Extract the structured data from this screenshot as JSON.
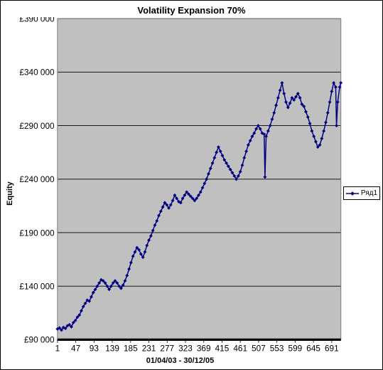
{
  "chart": {
    "type": "line",
    "title": "Volatility Expansion 70%",
    "title_fontsize": 13,
    "xlabel": "01/04/03 - 30/12/05",
    "ylabel": "Equity",
    "background_color": "#ffffff",
    "plot_background_color": "#c0c0c0",
    "grid_color": "#000000",
    "border_color": "#808080",
    "baseline_color": "#000000",
    "frame_border_color": "#000000",
    "y": {
      "min": 90000,
      "max": 390000,
      "tick_step": 50000,
      "ticks": [
        90000,
        140000,
        190000,
        240000,
        290000,
        340000,
        390000
      ],
      "tick_labels": [
        "£90 000",
        "£140 000",
        "£190 000",
        "£240 000",
        "£290 000",
        "£340 000",
        "£390 000"
      ],
      "tick_fontsize": 11
    },
    "x": {
      "min": 1,
      "max": 714,
      "tick_step": 46,
      "ticks": [
        1,
        47,
        93,
        139,
        185,
        231,
        277,
        323,
        369,
        415,
        461,
        507,
        553,
        599,
        645,
        691
      ],
      "tick_labels": [
        "1",
        "47",
        "93",
        "139",
        "185",
        "231",
        "277",
        "323",
        "369",
        "415",
        "461",
        "507",
        "553",
        "599",
        "645",
        "691"
      ],
      "tick_fontsize": 11
    },
    "series": [
      {
        "name": "Ряд1",
        "color": "#000080",
        "line_width": 1.4,
        "marker": "diamond",
        "marker_size": 3.2,
        "data": [
          [
            1,
            100000
          ],
          [
            6,
            101000
          ],
          [
            11,
            99000
          ],
          [
            16,
            101500
          ],
          [
            21,
            100500
          ],
          [
            26,
            103000
          ],
          [
            31,
            104000
          ],
          [
            36,
            102000
          ],
          [
            41,
            106000
          ],
          [
            46,
            108000
          ],
          [
            51,
            111000
          ],
          [
            56,
            113000
          ],
          [
            61,
            117000
          ],
          [
            66,
            121000
          ],
          [
            71,
            124000
          ],
          [
            76,
            127000
          ],
          [
            81,
            126000
          ],
          [
            86,
            130000
          ],
          [
            91,
            134000
          ],
          [
            96,
            137000
          ],
          [
            101,
            140000
          ],
          [
            106,
            143000
          ],
          [
            111,
            146000
          ],
          [
            116,
            145000
          ],
          [
            121,
            143000
          ],
          [
            126,
            140000
          ],
          [
            131,
            137000
          ],
          [
            136,
            140000
          ],
          [
            141,
            143000
          ],
          [
            146,
            145000
          ],
          [
            151,
            143000
          ],
          [
            156,
            140000
          ],
          [
            161,
            138000
          ],
          [
            166,
            141000
          ],
          [
            171,
            145000
          ],
          [
            176,
            150000
          ],
          [
            181,
            156000
          ],
          [
            186,
            162000
          ],
          [
            191,
            168000
          ],
          [
            196,
            172000
          ],
          [
            201,
            176000
          ],
          [
            206,
            174000
          ],
          [
            211,
            170000
          ],
          [
            216,
            167000
          ],
          [
            221,
            172000
          ],
          [
            226,
            178000
          ],
          [
            231,
            183000
          ],
          [
            236,
            187000
          ],
          [
            241,
            192000
          ],
          [
            246,
            197000
          ],
          [
            251,
            201000
          ],
          [
            256,
            206000
          ],
          [
            261,
            210000
          ],
          [
            266,
            214000
          ],
          [
            271,
            218000
          ],
          [
            276,
            216000
          ],
          [
            281,
            213000
          ],
          [
            286,
            216000
          ],
          [
            291,
            220000
          ],
          [
            296,
            225000
          ],
          [
            301,
            222000
          ],
          [
            306,
            219000
          ],
          [
            311,
            218000
          ],
          [
            316,
            222000
          ],
          [
            321,
            225000
          ],
          [
            326,
            228000
          ],
          [
            331,
            226000
          ],
          [
            336,
            224000
          ],
          [
            341,
            222000
          ],
          [
            346,
            220000
          ],
          [
            351,
            222000
          ],
          [
            356,
            225000
          ],
          [
            361,
            228000
          ],
          [
            366,
            232000
          ],
          [
            371,
            236000
          ],
          [
            376,
            240000
          ],
          [
            381,
            245000
          ],
          [
            386,
            250000
          ],
          [
            391,
            255000
          ],
          [
            396,
            260000
          ],
          [
            401,
            265000
          ],
          [
            406,
            270000
          ],
          [
            411,
            266000
          ],
          [
            416,
            262000
          ],
          [
            421,
            258000
          ],
          [
            426,
            255000
          ],
          [
            431,
            252000
          ],
          [
            436,
            249000
          ],
          [
            441,
            246000
          ],
          [
            446,
            243000
          ],
          [
            451,
            240000
          ],
          [
            456,
            243000
          ],
          [
            461,
            247000
          ],
          [
            466,
            253000
          ],
          [
            471,
            260000
          ],
          [
            476,
            266000
          ],
          [
            481,
            272000
          ],
          [
            486,
            276000
          ],
          [
            491,
            280000
          ],
          [
            496,
            283000
          ],
          [
            501,
            287000
          ],
          [
            506,
            290000
          ],
          [
            511,
            287000
          ],
          [
            516,
            283000
          ],
          [
            521,
            282000
          ],
          [
            523,
            242000
          ],
          [
            526,
            280000
          ],
          [
            531,
            285000
          ],
          [
            536,
            290000
          ],
          [
            541,
            296000
          ],
          [
            546,
            302000
          ],
          [
            551,
            309000
          ],
          [
            556,
            316000
          ],
          [
            561,
            323000
          ],
          [
            566,
            330000
          ],
          [
            571,
            320000
          ],
          [
            576,
            312000
          ],
          [
            581,
            307000
          ],
          [
            586,
            311000
          ],
          [
            591,
            316000
          ],
          [
            596,
            314000
          ],
          [
            601,
            317000
          ],
          [
            606,
            320000
          ],
          [
            611,
            316000
          ],
          [
            616,
            310000
          ],
          [
            621,
            308000
          ],
          [
            626,
            303000
          ],
          [
            631,
            298000
          ],
          [
            636,
            292000
          ],
          [
            641,
            285000
          ],
          [
            646,
            280000
          ],
          [
            651,
            275000
          ],
          [
            656,
            270000
          ],
          [
            661,
            272000
          ],
          [
            666,
            278000
          ],
          [
            671,
            285000
          ],
          [
            676,
            293000
          ],
          [
            681,
            302000
          ],
          [
            686,
            312000
          ],
          [
            691,
            322000
          ],
          [
            696,
            330000
          ],
          [
            701,
            326000
          ],
          [
            703,
            290000
          ],
          [
            706,
            312000
          ],
          [
            711,
            326000
          ],
          [
            714,
            330000
          ]
        ]
      }
    ],
    "legend": {
      "position": "right-middle",
      "border_color": "#000000",
      "background": "#ffffff",
      "fontsize": 10
    }
  }
}
